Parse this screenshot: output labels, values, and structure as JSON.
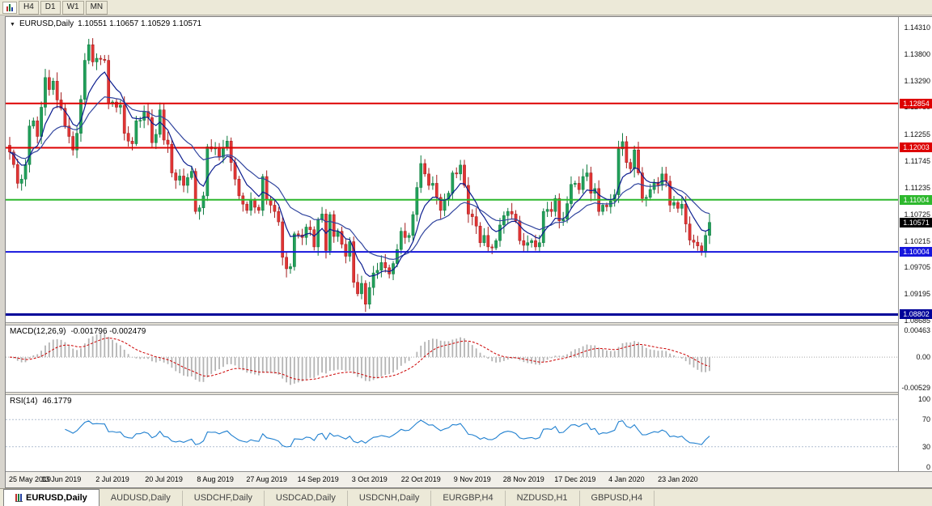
{
  "toolbar": {
    "timeframes": [
      "H4",
      "D1",
      "W1",
      "MN"
    ]
  },
  "chart": {
    "title": "EURUSD,Daily",
    "ohlc": "1.10551  1.10657  1.10529  1.10571"
  },
  "chart_data": {
    "type": "candlestick",
    "symbol": "EURUSD",
    "timeframe": "Daily",
    "price_top": 1.1431,
    "price_bottom": 1.08685,
    "price_axis_ticks": [
      "1.14310",
      "1.13800",
      "1.13290",
      "1.12780",
      "1.12255",
      "1.11745",
      "1.11235",
      "1.10725",
      "1.10215",
      "1.09705",
      "1.09195",
      "1.08685"
    ],
    "x_labels": [
      "25 May 2019",
      "13 Jun 2019",
      "2 Jul 2019",
      "20 Jul 2019",
      "8 Aug 2019",
      "27 Aug 2019",
      "14 Sep 2019",
      "3 Oct 2019",
      "22 Oct 2019",
      "9 Nov 2019",
      "28 Nov 2019",
      "17 Dec 2019",
      "4 Jan 2020",
      "23 Jan 2020"
    ],
    "x_label_step": 13,
    "first_open": 1.1205,
    "closes": [
      1.1192,
      1.1168,
      1.1132,
      1.114,
      1.1168,
      1.1242,
      1.1252,
      1.1222,
      1.1278,
      1.1335,
      1.1312,
      1.1328,
      1.1292,
      1.1276,
      1.1242,
      1.1222,
      1.1196,
      1.1228,
      1.1293,
      1.1368,
      1.1398,
      1.1365,
      1.1372,
      1.137,
      1.1368,
      1.1285,
      1.1288,
      1.1278,
      1.1282,
      1.1228,
      1.1213,
      1.1208,
      1.1252,
      1.1253,
      1.127,
      1.1258,
      1.121,
      1.1226,
      1.1273,
      1.1215,
      1.1207,
      1.1152,
      1.1138,
      1.1146,
      1.1128,
      1.1143,
      1.1155,
      1.1078,
      1.1085,
      1.1108,
      1.1202,
      1.1198,
      1.12,
      1.1182,
      1.12,
      1.1213,
      1.1172,
      1.114,
      1.1108,
      1.1092,
      1.108,
      1.11,
      1.1086,
      1.108,
      1.1145,
      1.11,
      1.109,
      1.1078,
      1.1058,
      1.099,
      1.0968,
      1.0972,
      1.1035,
      1.1033,
      1.1028,
      1.1048,
      1.1043,
      1.101,
      1.1062,
      1.1073,
      1.1003,
      1.1072,
      1.103,
      1.104,
      1.1015,
      1.0992,
      1.102,
      1.0942,
      1.092,
      1.094,
      1.09,
      1.0932,
      1.096,
      1.0965,
      1.098,
      1.097,
      1.0958,
      1.0978,
      1.1005,
      1.104,
      1.1028,
      1.1032,
      1.1072,
      1.1124,
      1.117,
      1.115,
      1.1128,
      1.1132,
      1.1105,
      1.108,
      1.11,
      1.1113,
      1.1152,
      1.115,
      1.1167,
      1.1128,
      1.1073,
      1.1068,
      1.105,
      1.1018,
      1.1032,
      1.101,
      1.1008,
      1.1022,
      1.1052,
      1.107,
      1.1078,
      1.1073,
      1.106,
      1.1022,
      1.1013,
      1.1018,
      1.1022,
      1.101,
      1.1018,
      1.1078,
      1.1082,
      1.1078,
      1.1103,
      1.106,
      1.1063,
      1.1093,
      1.113,
      1.1132,
      1.112,
      1.1145,
      1.1152,
      1.1113,
      1.1122,
      1.1078,
      1.109,
      1.1087,
      1.1098,
      1.111,
      1.1198,
      1.1212,
      1.1172,
      1.116,
      1.1196,
      1.1152,
      1.1103,
      1.1105,
      1.112,
      1.1134,
      1.1128,
      1.115,
      1.1136,
      1.109,
      1.1095,
      1.1084,
      1.1092,
      1.1054,
      1.1023,
      1.1019,
      1.1012,
      1.1002,
      1.1032,
      1.1057
    ],
    "levels": [
      {
        "price": "1.12854",
        "color": "#dd0000",
        "width": 2
      },
      {
        "price": "1.12003",
        "color": "#dd0000",
        "width": 2
      },
      {
        "price": "1.11004",
        "color": "#2db82d",
        "width": 2
      },
      {
        "price": "1.10004",
        "color": "#1616dd",
        "width": 2
      },
      {
        "price": "1.08802",
        "color": "#000299",
        "width": 3
      }
    ],
    "current_price": {
      "value": "1.10571",
      "color": "#000000"
    },
    "colors": {
      "bull": "#21a05a",
      "bull_border": "#0e7a3e",
      "bear": "#e23434",
      "bear_border": "#a31d1d",
      "ma_fast": "#0b1d8f",
      "ma_slow": "#31459e",
      "macd_hist": "#b4b4b4",
      "macd_signal": "#cc0000",
      "rsi_line": "#2080d0",
      "rsi_level": "#b0bed0"
    },
    "macd": {
      "label": "MACD(12,26,9)",
      "values": "-0.001796 -0.002479",
      "ticks": [
        "0.00463",
        "0.00",
        "-0.00529"
      ]
    },
    "rsi": {
      "label": "RSI(14)",
      "value": "46.1779",
      "ticks": [
        "100",
        "70",
        "30",
        "0"
      ],
      "bands": [
        70,
        30
      ]
    }
  },
  "tabs": [
    {
      "label": "EURUSD,Daily",
      "active": true
    },
    {
      "label": "AUDUSD,Daily",
      "active": false
    },
    {
      "label": "USDCHF,Daily",
      "active": false
    },
    {
      "label": "USDCAD,Daily",
      "active": false
    },
    {
      "label": "USDCNH,Daily",
      "active": false
    },
    {
      "label": "EURGBP,H4",
      "active": false
    },
    {
      "label": "NZDUSD,H1",
      "active": false
    },
    {
      "label": "GBPUSD,H4",
      "active": false
    }
  ]
}
